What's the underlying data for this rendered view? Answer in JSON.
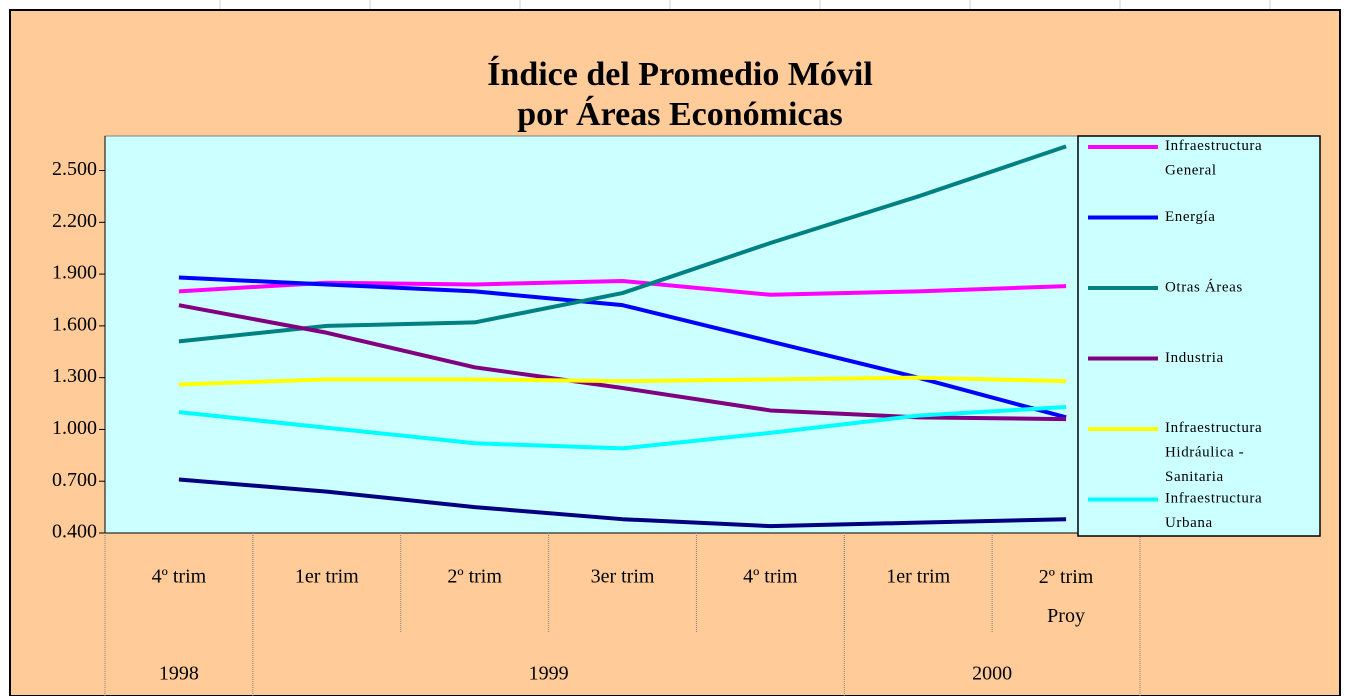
{
  "chart_data": {
    "type": "line",
    "title": "Índice del Promedio Móvil",
    "subtitle": "por Áreas Económicas",
    "categories": [
      "4º trim",
      "1er trim",
      "2º trim",
      "3er trim",
      "4º trim",
      "1er trim",
      "2º trim Proy"
    ],
    "groups": [
      {
        "label": "1998",
        "span": 1
      },
      {
        "label": "1999",
        "span": 4
      },
      {
        "label": "2000",
        "span": 2
      }
    ],
    "ylim": [
      0.4,
      2.7
    ],
    "yticks": [
      {
        "value": 0.4,
        "label": "0.400"
      },
      {
        "value": 0.7,
        "label": "0.700"
      },
      {
        "value": 1.0,
        "label": "1.000"
      },
      {
        "value": 1.3,
        "label": "1.300"
      },
      {
        "value": 1.6,
        "label": "1.600"
      },
      {
        "value": 1.9,
        "label": "1.900"
      },
      {
        "value": 2.2,
        "label": "2.200"
      },
      {
        "value": 2.5,
        "label": "2.500"
      }
    ],
    "grid": false,
    "legend": "right",
    "series": [
      {
        "name": "Infraestructura General",
        "color": "#ff00ff",
        "values": [
          1.8,
          1.85,
          1.84,
          1.86,
          1.78,
          1.8,
          1.83
        ]
      },
      {
        "name": "Energía",
        "color": "#0000ff",
        "values": [
          1.88,
          1.84,
          1.8,
          1.72,
          1.51,
          1.3,
          1.07
        ]
      },
      {
        "name": "Otras Áreas",
        "color": "#008080",
        "values": [
          1.51,
          1.6,
          1.62,
          1.79,
          2.08,
          2.35,
          2.64
        ]
      },
      {
        "name": "Industria",
        "color": "#800080",
        "values": [
          1.72,
          1.56,
          1.36,
          1.24,
          1.11,
          1.07,
          1.06
        ]
      },
      {
        "name": "Infraestructura Hidráulica - Sanitaria",
        "color": "#ffff00",
        "values": [
          1.26,
          1.29,
          1.29,
          1.28,
          1.29,
          1.3,
          1.28
        ]
      },
      {
        "name": "Infraestructura Urbana",
        "color": "#00ffff",
        "values": [
          1.1,
          1.01,
          0.92,
          0.89,
          0.98,
          1.08,
          1.13
        ]
      },
      {
        "color": "#000080",
        "values": [
          0.71,
          0.64,
          0.55,
          0.48,
          0.44,
          0.46,
          0.48
        ]
      }
    ]
  }
}
